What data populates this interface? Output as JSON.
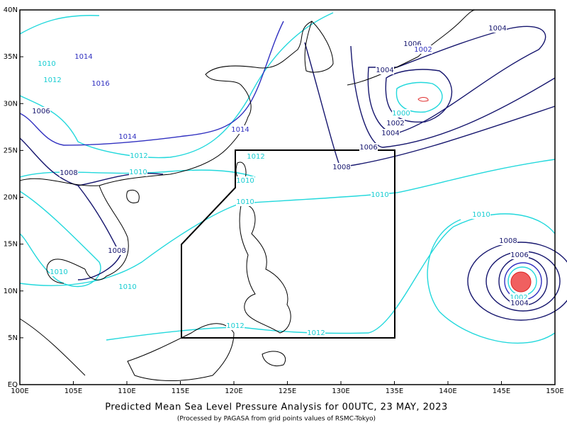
{
  "map": {
    "title": "Predicted Mean Sea Level Pressure Analysis for 00UTC, 23 MAY, 2023",
    "subtitle": "(Processed by PAGASA from grid points values of RSMC-Tokyo)",
    "xlim": [
      100,
      150
    ],
    "ylim": [
      0,
      40
    ],
    "xticks": [
      {
        "value": 100,
        "label": "100E"
      },
      {
        "value": 105,
        "label": "105E"
      },
      {
        "value": 110,
        "label": "110E"
      },
      {
        "value": 115,
        "label": "115E"
      },
      {
        "value": 120,
        "label": "120E"
      },
      {
        "value": 125,
        "label": "125E"
      },
      {
        "value": 130,
        "label": "130E"
      },
      {
        "value": 135,
        "label": "135E"
      },
      {
        "value": 140,
        "label": "140E"
      },
      {
        "value": 145,
        "label": "145E"
      },
      {
        "value": 150,
        "label": "150E"
      }
    ],
    "yticks": [
      {
        "value": 0,
        "label": "EQ"
      },
      {
        "value": 5,
        "label": "5N"
      },
      {
        "value": 10,
        "label": "10N"
      },
      {
        "value": 15,
        "label": "15N"
      },
      {
        "value": 20,
        "label": "20N"
      },
      {
        "value": 25,
        "label": "25N"
      },
      {
        "value": 30,
        "label": "30N"
      },
      {
        "value": 35,
        "label": "35N"
      },
      {
        "value": 40,
        "label": "40N"
      }
    ],
    "contour_labels": [
      1014,
      1016,
      1010,
      1012,
      1006,
      1014,
      1012,
      1010,
      1008,
      1014,
      1012,
      1010,
      1010,
      1008,
      1010,
      1010,
      1012,
      1012,
      1010,
      1008,
      1006,
      1004,
      1002,
      1000,
      1006,
      1002,
      1004,
      1004,
      1010,
      1008,
      1006,
      1002,
      1004
    ]
  }
}
